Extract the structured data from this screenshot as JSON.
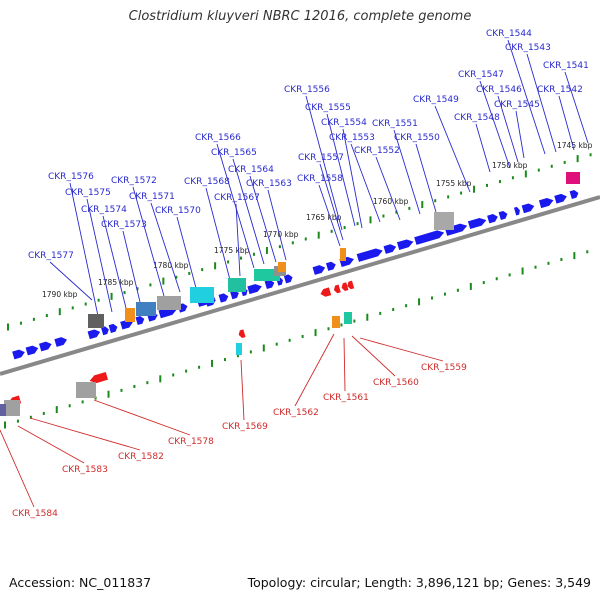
{
  "title": "Clostridium kluyveri NBRC 12016, complete genome",
  "footer": {
    "accession_label": "Accession:",
    "accession": "NC_011837",
    "topology_label": "Topology:",
    "topology": "circular",
    "length_label": "Length:",
    "length": "3,896,121 bp",
    "genes_label": "Genes:",
    "genes": "3,549"
  },
  "colors": {
    "forward_gene": "#1a1aee",
    "reverse_gene": "#ee1a1a",
    "backbone": "#888888",
    "tick": "#1a8a1a",
    "forward_label": "#2a2ad0",
    "reverse_label": "#d02a2a"
  },
  "scale_labels": [
    "1745 kbp",
    "1750 kbp",
    "1755 kbp",
    "1760 kbp",
    "1765 kbp",
    "1770 kbp",
    "1775 kbp",
    "1780 kbp",
    "1785 kbp",
    "1790 kbp"
  ],
  "forward_labels": [
    "CKR_1541",
    "CKR_1542",
    "CKR_1543",
    "CKR_1544",
    "CKR_1545",
    "CKR_1546",
    "CKR_1547",
    "CKR_1548",
    "CKR_1549",
    "CKR_1550",
    "CKR_1551",
    "CKR_1552",
    "CKR_1553",
    "CKR_1554",
    "CKR_1555",
    "CKR_1556",
    "CKR_1557",
    "CKR_1558",
    "CKR_1563",
    "CKR_1564",
    "CKR_1565",
    "CKR_1566",
    "CKR_1567",
    "CKR_1568",
    "CKR_1570",
    "CKR_1571",
    "CKR_1572",
    "CKR_1573",
    "CKR_1574",
    "CKR_1575",
    "CKR_1576",
    "CKR_1577"
  ],
  "reverse_labels": [
    "CKR_1559",
    "CKR_1560",
    "CKR_1561",
    "CKR_1562",
    "CKR_1569",
    "CKR_1578",
    "CKR_1582",
    "CKR_1583",
    "CKR_1584"
  ]
}
